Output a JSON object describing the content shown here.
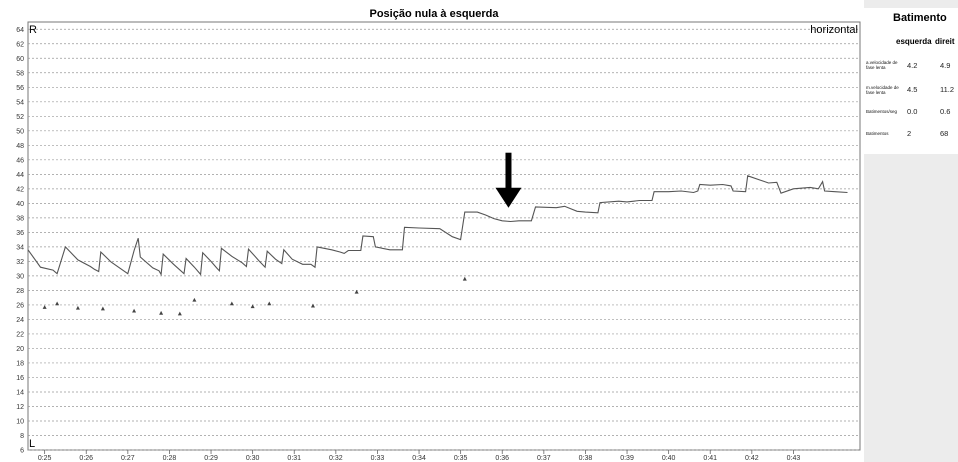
{
  "chart_data": {
    "type": "line",
    "title": "Posição nula à esquerda",
    "corner_top_left": "R",
    "corner_bottom_left": "L",
    "corner_top_right": "horizontal",
    "y_ticks": [
      6,
      8,
      10,
      12,
      14,
      16,
      18,
      20,
      22,
      24,
      26,
      28,
      30,
      32,
      34,
      36,
      38,
      40,
      42,
      44,
      46,
      48,
      50,
      52,
      54,
      56,
      58,
      60,
      62,
      64
    ],
    "ylim": [
      6,
      65
    ],
    "x_ticks": [
      "0:25",
      "0:26",
      "0:27",
      "0:28",
      "0:29",
      "0:30",
      "0:31",
      "0:32",
      "0:33",
      "0:34",
      "0:35",
      "0:36",
      "0:37",
      "0:38",
      "0:39",
      "0:40",
      "0:41",
      "0:42",
      "0:43"
    ],
    "xlim_seconds": [
      24.6,
      44.6
    ],
    "grid": true,
    "series": [
      {
        "values": [
          [
            24.6,
            33.6
          ],
          [
            24.9,
            31.2
          ],
          [
            25.2,
            30.8
          ],
          [
            25.3,
            30.3
          ],
          [
            25.5,
            34.0
          ],
          [
            25.8,
            32.2
          ],
          [
            26.1,
            31.3
          ],
          [
            26.2,
            30.9
          ],
          [
            26.3,
            30.6
          ],
          [
            26.35,
            33.3
          ],
          [
            26.6,
            31.9
          ],
          [
            26.9,
            30.7
          ],
          [
            27.0,
            30.3
          ],
          [
            27.15,
            33.5
          ],
          [
            27.25,
            35.2
          ],
          [
            27.3,
            32.6
          ],
          [
            27.6,
            31.1
          ],
          [
            27.75,
            30.7
          ],
          [
            27.8,
            30.2
          ],
          [
            27.85,
            33.0
          ],
          [
            28.1,
            31.6
          ],
          [
            28.35,
            30.3
          ],
          [
            28.4,
            32.4
          ],
          [
            28.6,
            31.2
          ],
          [
            28.75,
            30.2
          ],
          [
            28.8,
            33.2
          ],
          [
            29.0,
            32.0
          ],
          [
            29.15,
            31.0
          ],
          [
            29.2,
            30.7
          ],
          [
            29.25,
            33.8
          ],
          [
            29.5,
            32.7
          ],
          [
            29.75,
            31.8
          ],
          [
            29.85,
            31.3
          ],
          [
            29.9,
            33.7
          ],
          [
            30.15,
            32.1
          ],
          [
            30.3,
            31.2
          ],
          [
            30.35,
            33.4
          ],
          [
            30.55,
            32.3
          ],
          [
            30.7,
            31.7
          ],
          [
            30.75,
            33.6
          ],
          [
            30.95,
            32.3
          ],
          [
            31.2,
            31.6
          ],
          [
            31.4,
            31.6
          ],
          [
            31.5,
            31.2
          ],
          [
            31.55,
            34.0
          ],
          [
            31.9,
            33.6
          ],
          [
            32.1,
            33.3
          ],
          [
            32.2,
            33.1
          ],
          [
            32.3,
            33.5
          ],
          [
            32.6,
            33.5
          ],
          [
            32.65,
            35.5
          ],
          [
            32.9,
            35.4
          ],
          [
            32.95,
            34.0
          ],
          [
            33.3,
            33.6
          ],
          [
            33.6,
            33.6
          ],
          [
            33.65,
            36.7
          ],
          [
            34.0,
            36.6
          ],
          [
            34.5,
            36.5
          ],
          [
            34.8,
            35.4
          ],
          [
            35.0,
            35.0
          ],
          [
            35.1,
            38.8
          ],
          [
            35.4,
            38.8
          ],
          [
            35.6,
            38.4
          ],
          [
            35.8,
            37.9
          ],
          [
            36.0,
            37.6
          ],
          [
            36.2,
            37.5
          ],
          [
            36.4,
            37.6
          ],
          [
            36.7,
            37.6
          ],
          [
            36.8,
            39.5
          ],
          [
            37.3,
            39.4
          ],
          [
            37.5,
            39.6
          ],
          [
            37.8,
            38.9
          ],
          [
            38.0,
            38.8
          ],
          [
            38.3,
            38.7
          ],
          [
            38.35,
            40.1
          ],
          [
            38.8,
            40.3
          ],
          [
            39.0,
            40.2
          ],
          [
            39.3,
            40.4
          ],
          [
            39.6,
            40.4
          ],
          [
            39.65,
            41.6
          ],
          [
            40.0,
            41.6
          ],
          [
            40.3,
            41.7
          ],
          [
            40.6,
            41.5
          ],
          [
            40.7,
            41.7
          ],
          [
            40.75,
            42.6
          ],
          [
            41.0,
            42.5
          ],
          [
            41.3,
            42.6
          ],
          [
            41.5,
            42.4
          ],
          [
            41.55,
            41.7
          ],
          [
            41.85,
            41.6
          ],
          [
            41.9,
            43.8
          ],
          [
            42.2,
            43.2
          ],
          [
            42.4,
            42.8
          ],
          [
            42.6,
            42.9
          ],
          [
            42.7,
            41.4
          ],
          [
            43.0,
            42.0
          ],
          [
            43.4,
            42.2
          ],
          [
            43.6,
            42.0
          ],
          [
            43.7,
            43.0
          ],
          [
            43.75,
            41.7
          ],
          [
            44.0,
            41.6
          ],
          [
            44.3,
            41.5
          ]
        ]
      }
    ],
    "markers": [
      [
        25.0,
        25.7
      ],
      [
        25.3,
        26.2
      ],
      [
        25.8,
        25.6
      ],
      [
        26.4,
        25.5
      ],
      [
        27.15,
        25.2
      ],
      [
        27.8,
        24.9
      ],
      [
        28.25,
        24.8
      ],
      [
        28.6,
        26.7
      ],
      [
        29.5,
        26.2
      ],
      [
        30.0,
        25.8
      ],
      [
        30.4,
        26.2
      ],
      [
        31.45,
        25.9
      ],
      [
        32.5,
        27.8
      ],
      [
        35.1,
        29.6
      ]
    ],
    "annotation_arrow": {
      "x_seconds": 36.15,
      "tip_value": 39.4
    }
  },
  "side_panel": {
    "title": "Batimento",
    "col_left": "esquerda",
    "col_right": "direit",
    "rows": [
      {
        "label": "a.velocidade de fase lenta",
        "left": "4.2",
        "right": "4.9"
      },
      {
        "label": "m.velocidade de fase lenta",
        "left": "4.5",
        "right": "11.2"
      },
      {
        "label": "Batimentos/seg",
        "left": "0.0",
        "right": "0.6"
      },
      {
        "label": "Batimentos",
        "left": "2",
        "right": "68"
      }
    ]
  }
}
